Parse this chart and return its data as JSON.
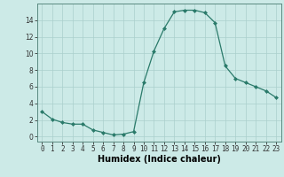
{
  "x": [
    0,
    1,
    2,
    3,
    4,
    5,
    6,
    7,
    8,
    9,
    10,
    11,
    12,
    13,
    14,
    15,
    16,
    17,
    18,
    19,
    20,
    21,
    22,
    23
  ],
  "y": [
    3,
    2.1,
    1.7,
    1.5,
    1.5,
    0.8,
    0.5,
    0.2,
    0.3,
    0.6,
    6.5,
    10.3,
    13.0,
    15.0,
    15.2,
    15.2,
    14.9,
    13.7,
    8.5,
    7.0,
    6.5,
    6.0,
    5.5,
    4.7
  ],
  "line_color": "#2a7a6a",
  "marker": "D",
  "marker_size": 2,
  "bg_color": "#cceae7",
  "grid_color": "#aacfcc",
  "xlabel": "Humidex (Indice chaleur)",
  "xlabel_fontsize": 7,
  "xlim": [
    -0.5,
    23.5
  ],
  "ylim": [
    -0.6,
    16.0
  ],
  "yticks": [
    0,
    2,
    4,
    6,
    8,
    10,
    12,
    14
  ],
  "xtick_labels": [
    "0",
    "1",
    "2",
    "3",
    "4",
    "5",
    "6",
    "7",
    "8",
    "9",
    "10",
    "11",
    "12",
    "13",
    "14",
    "15",
    "16",
    "17",
    "18",
    "19",
    "20",
    "21",
    "22",
    "23"
  ],
  "tick_fontsize": 5.5
}
